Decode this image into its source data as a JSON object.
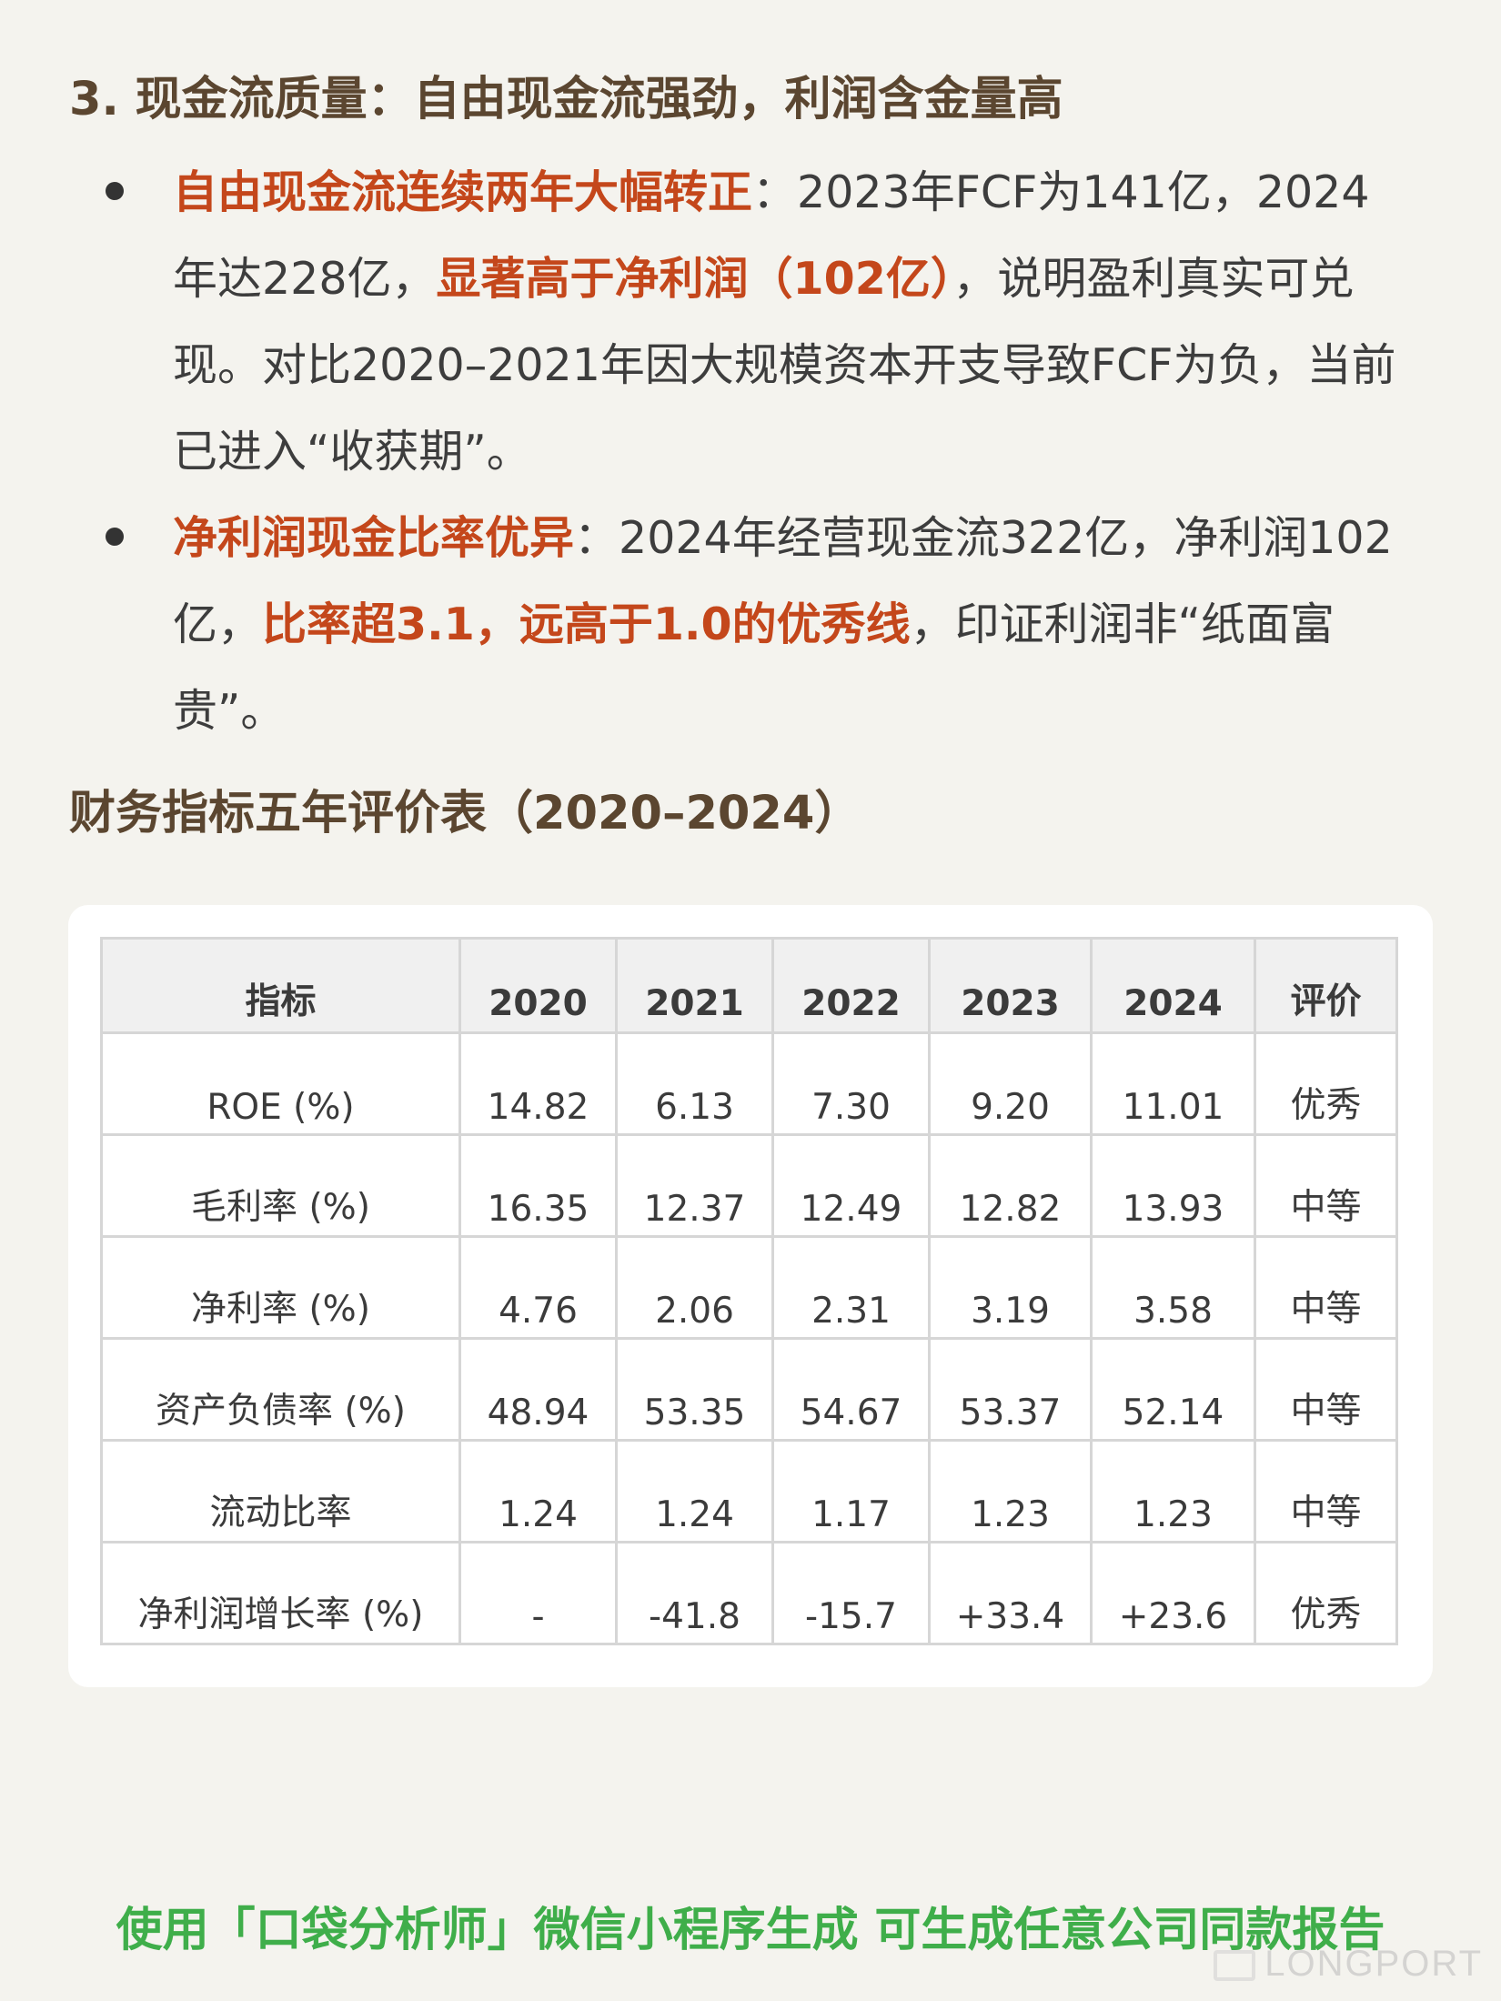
{
  "section": {
    "heading": "3. 现金流质量：自由现金流强劲，利润含金量高",
    "bullets": [
      {
        "parts": [
          {
            "text": "自由现金流连续两年大幅转正",
            "hl": true
          },
          {
            "text": "：2023年FCF为141亿，2024年达228亿，",
            "hl": false
          },
          {
            "text": "显著高于净利润（102亿）",
            "hl": true
          },
          {
            "text": "，说明盈利真实可兑现。对比2020–2021年因大规模资本开支导致FCF为负，当前已进入“收获期”。",
            "hl": false
          }
        ]
      },
      {
        "parts": [
          {
            "text": "净利润现金比率优异",
            "hl": true
          },
          {
            "text": "：2024年经营现金流322亿，净利润102亿，",
            "hl": false
          },
          {
            "text": "比率超3.1，远高于1.0的优秀线",
            "hl": true
          },
          {
            "text": "，印证利润非“纸面富贵”。",
            "hl": false
          }
        ]
      }
    ]
  },
  "table": {
    "heading": "财务指标五年评价表（2020–2024）",
    "columns": [
      "指标",
      "2020",
      "2021",
      "2022",
      "2023",
      "2024",
      "评价"
    ],
    "rows": [
      [
        "ROE (%)",
        "14.82",
        "6.13",
        "7.30",
        "9.20",
        "11.01",
        "优秀"
      ],
      [
        "毛利率 (%)",
        "16.35",
        "12.37",
        "12.49",
        "12.82",
        "13.93",
        "中等"
      ],
      [
        "净利率 (%)",
        "4.76",
        "2.06",
        "2.31",
        "3.19",
        "3.58",
        "中等"
      ],
      [
        "资产负债率 (%)",
        "48.94",
        "53.35",
        "54.67",
        "53.37",
        "52.14",
        "中等"
      ],
      [
        "流动比率",
        "1.24",
        "1.24",
        "1.17",
        "1.23",
        "1.23",
        "中等"
      ],
      [
        "净利润增长率 (%)",
        "-",
        "-41.8",
        "-15.7",
        "+33.4",
        "+23.6",
        "优秀"
      ]
    ]
  },
  "footer": {
    "text": "使用「口袋分析师」微信小程序生成 可生成任意公司同款报告"
  },
  "watermark": {
    "text": "LONGPORT"
  },
  "colors": {
    "highlight": "#c4471b",
    "heading": "#5b4630",
    "footer": "#3fae4a",
    "background": "#f4f3ee"
  }
}
